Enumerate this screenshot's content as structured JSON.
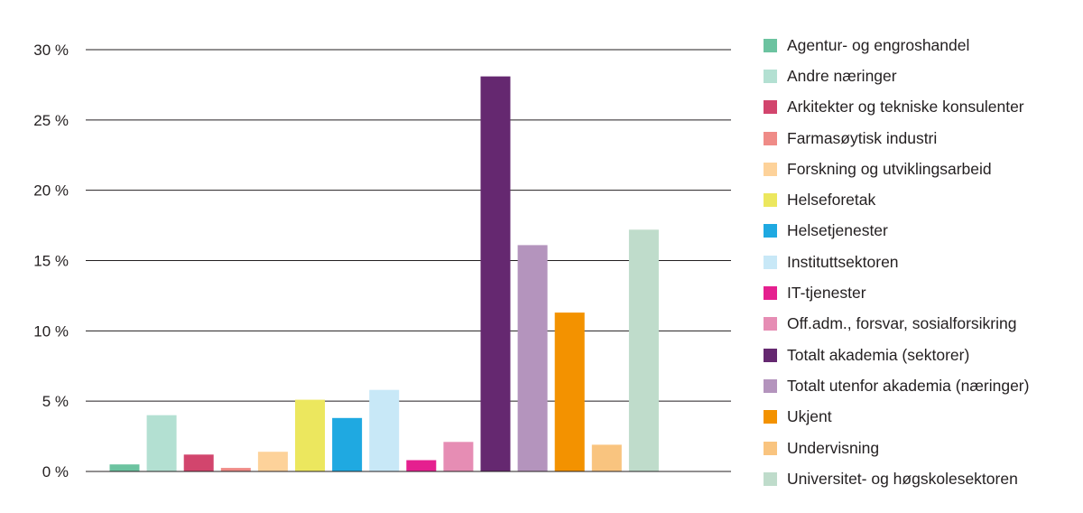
{
  "chart_data": {
    "type": "bar",
    "title": "",
    "xlabel": "",
    "ylabel": "",
    "ylim": [
      0,
      30
    ],
    "yticks": [
      {
        "value": 0,
        "label": "0 %"
      },
      {
        "value": 5,
        "label": "5 %"
      },
      {
        "value": 10,
        "label": "10 %"
      },
      {
        "value": 15,
        "label": "15 %"
      },
      {
        "value": 20,
        "label": "20 %"
      },
      {
        "value": 25,
        "label": "25 %"
      },
      {
        "value": 30,
        "label": "30 %"
      }
    ],
    "grid": true,
    "legend_position": "right",
    "categories": [
      "Agentur- og engroshandel",
      "Andre næringer",
      "Arkitekter og tekniske konsulenter",
      "Farmasøytisk industri",
      "Forskning og utviklingsarbeid",
      "Helseforetak",
      "Helsetjenester",
      "Instituttsektoren",
      "IT-tjenester",
      "Off.adm., forsvar, sosialforsikring",
      "Totalt akademia (sektorer)",
      "Totalt utenfor akademia (næringer)",
      "Ukjent",
      "Undervisning",
      "Universitet- og høgskolesektoren"
    ],
    "values": [
      0.5,
      4.0,
      1.2,
      0.25,
      1.4,
      5.1,
      3.8,
      5.8,
      0.8,
      2.1,
      28.1,
      16.1,
      11.3,
      1.9,
      17.2
    ],
    "colors": [
      "#6cc3a0",
      "#b3e0d2",
      "#d2456d",
      "#ef8b87",
      "#fdd29a",
      "#ece75e",
      "#1fa9e1",
      "#c8e8f7",
      "#e5208f",
      "#e68db4",
      "#652870",
      "#b494bd",
      "#f39200",
      "#f9c47f",
      "#bfdccb"
    ]
  }
}
